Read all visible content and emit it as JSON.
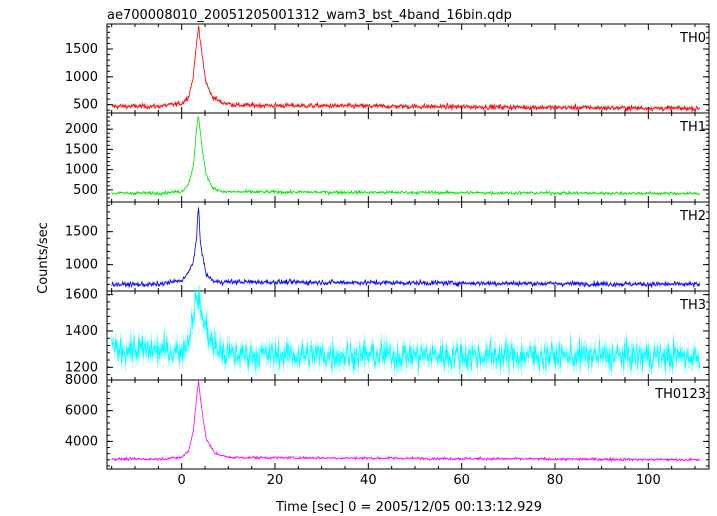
{
  "title": "ae700008010_20051205001312_wam3_bst_4band_16bin.qdp",
  "ylabel": "Counts/sec",
  "xlabel": "Time [sec] 0 = 2005/12/05 00:13:12.929",
  "chart_data": {
    "type": "line",
    "title": "ae700008010_20051205001312_wam3_bst_4band_16bin.qdp",
    "xlabel": "Time [sec] 0 = 2005/12/05 00:13:12.929",
    "ylabel": "Counts/sec",
    "xlim": [
      -16,
      113
    ],
    "x_ticks": [
      0,
      20,
      40,
      60,
      80,
      100
    ],
    "x_tick_labels": [
      "0",
      "20",
      "40",
      "60",
      "80",
      "100"
    ],
    "panels": [
      {
        "name": "TH0",
        "color": "#ff0000",
        "ylim": [
          350,
          1950
        ],
        "y_ticks": [
          500,
          1000,
          1500
        ],
        "y_tick_labels": [
          "500",
          "1000",
          "1500"
        ],
        "baseline": 470,
        "noise": 30,
        "profile": [
          [
            -5,
            470
          ],
          [
            0,
            520
          ],
          [
            1.5,
            650
          ],
          [
            2.5,
            1000
          ],
          [
            3.2,
            1650
          ],
          [
            3.6,
            1900
          ],
          [
            4.2,
            1500
          ],
          [
            5.2,
            900
          ],
          [
            6.5,
            650
          ],
          [
            8.5,
            540
          ],
          [
            12,
            490
          ],
          [
            112,
            430
          ]
        ]
      },
      {
        "name": "TH1",
        "color": "#00e600",
        "ylim": [
          200,
          2400
        ],
        "y_ticks": [
          500,
          1000,
          1500,
          2000
        ],
        "y_tick_labels": [
          "500",
          "1000",
          "1500",
          "2000"
        ],
        "baseline": 420,
        "noise": 28,
        "profile": [
          [
            -5,
            420
          ],
          [
            0,
            460
          ],
          [
            1.5,
            650
          ],
          [
            2.5,
            1100
          ],
          [
            3.2,
            2000
          ],
          [
            3.6,
            2350
          ],
          [
            4.2,
            1700
          ],
          [
            5.2,
            900
          ],
          [
            6.5,
            560
          ],
          [
            9,
            450
          ],
          [
            112,
            410
          ]
        ]
      },
      {
        "name": "TH2",
        "color": "#0000ff",
        "ylim": [
          600,
          1950
        ],
        "y_ticks": [
          1000,
          1500
        ],
        "y_tick_labels": [
          "1000",
          "1500"
        ],
        "baseline": 700,
        "noise": 25,
        "profile": [
          [
            -5,
            700
          ],
          [
            0,
            760
          ],
          [
            1.5,
            880
          ],
          [
            2.5,
            1050
          ],
          [
            3.2,
            1400
          ],
          [
            3.6,
            1900
          ],
          [
            4.0,
            1350
          ],
          [
            5.2,
            850
          ],
          [
            7,
            740
          ],
          [
            112,
            700
          ]
        ]
      },
      {
        "name": "TH3",
        "color": "#00ffff",
        "ylim": [
          1130,
          1620
        ],
        "y_ticks": [
          1200,
          1400,
          1600
        ],
        "y_tick_labels": [
          "1200",
          "1400",
          "1600"
        ],
        "baseline": 1270,
        "noise": 55,
        "profile": [
          [
            -15,
            1300
          ],
          [
            0,
            1290
          ],
          [
            1.5,
            1350
          ],
          [
            2.5,
            1500
          ],
          [
            3.3,
            1600
          ],
          [
            4.5,
            1470
          ],
          [
            6.5,
            1330
          ],
          [
            9,
            1270
          ],
          [
            112,
            1260
          ]
        ]
      },
      {
        "name": "TH0123",
        "color": "#ff00ff",
        "ylim": [
          2200,
          8000
        ],
        "y_ticks": [
          4000,
          6000,
          8000
        ],
        "y_tick_labels": [
          "4000",
          "6000",
          "8000"
        ],
        "baseline": 2850,
        "noise": 60,
        "profile": [
          [
            -5,
            2850
          ],
          [
            0,
            2950
          ],
          [
            1.5,
            3400
          ],
          [
            2.5,
            4700
          ],
          [
            3.2,
            6800
          ],
          [
            3.6,
            8000
          ],
          [
            4.2,
            6400
          ],
          [
            5.2,
            4200
          ],
          [
            7,
            3250
          ],
          [
            10,
            2950
          ],
          [
            112,
            2800
          ]
        ]
      }
    ]
  }
}
